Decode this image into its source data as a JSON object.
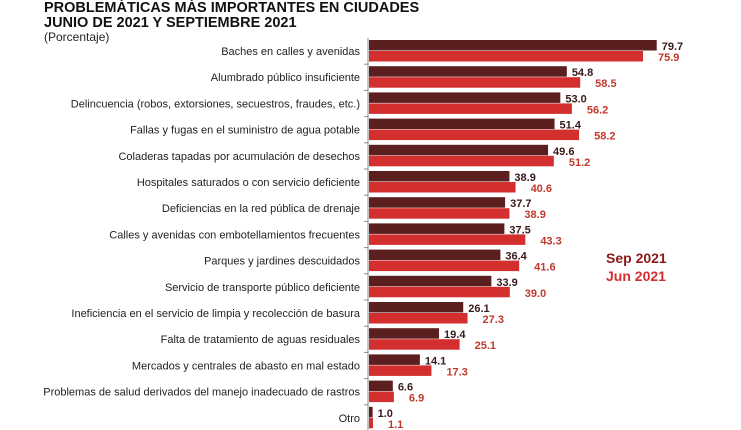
{
  "chart_data": {
    "type": "bar",
    "orientation": "horizontal",
    "title": "PROBLEMÁTICAS MÁS IMPORTANTES EN CIUDADES",
    "title_line2": "JUNIO DE 2021 Y SEPTIEMBRE 2021",
    "subtitle": "(Porcentaje)",
    "categories": [
      "Baches en calles y avenidas",
      "Alumbrado público insuficiente",
      "Delincuencia (robos, extorsiones, secuestros, fraudes, etc.)",
      "Fallas y fugas en el suministro de agua potable",
      "Coladeras tapadas por acumulación de desechos",
      "Hospitales saturados o con servicio deficiente",
      "Deficiencias en la red pública de drenaje",
      "Calles y avenidas con embotellamientos frecuentes",
      "Parques y jardines descuidados",
      "Servicio de transporte público deficiente",
      "Ineficiencia en el servicio de limpia y recolección de basura",
      "Falta de tratamiento de aguas residuales",
      "Mercados y centrales de abasto en mal estado",
      "Problemas de salud derivados del manejo inadecuado de rastros",
      "Otro"
    ],
    "series": [
      {
        "name": "Sep 2021",
        "color": "#5c1f1f",
        "values": [
          79.7,
          54.8,
          53.0,
          51.4,
          49.6,
          38.9,
          37.7,
          37.5,
          36.4,
          33.9,
          26.1,
          19.4,
          14.1,
          6.6,
          1.0
        ]
      },
      {
        "name": "Jun 2021",
        "color": "#d32f2f",
        "values": [
          75.9,
          58.5,
          56.2,
          58.2,
          51.2,
          40.6,
          38.9,
          43.3,
          41.6,
          39.0,
          27.3,
          25.1,
          17.3,
          6.9,
          1.1
        ]
      }
    ],
    "legend": "right",
    "grid": false
  }
}
